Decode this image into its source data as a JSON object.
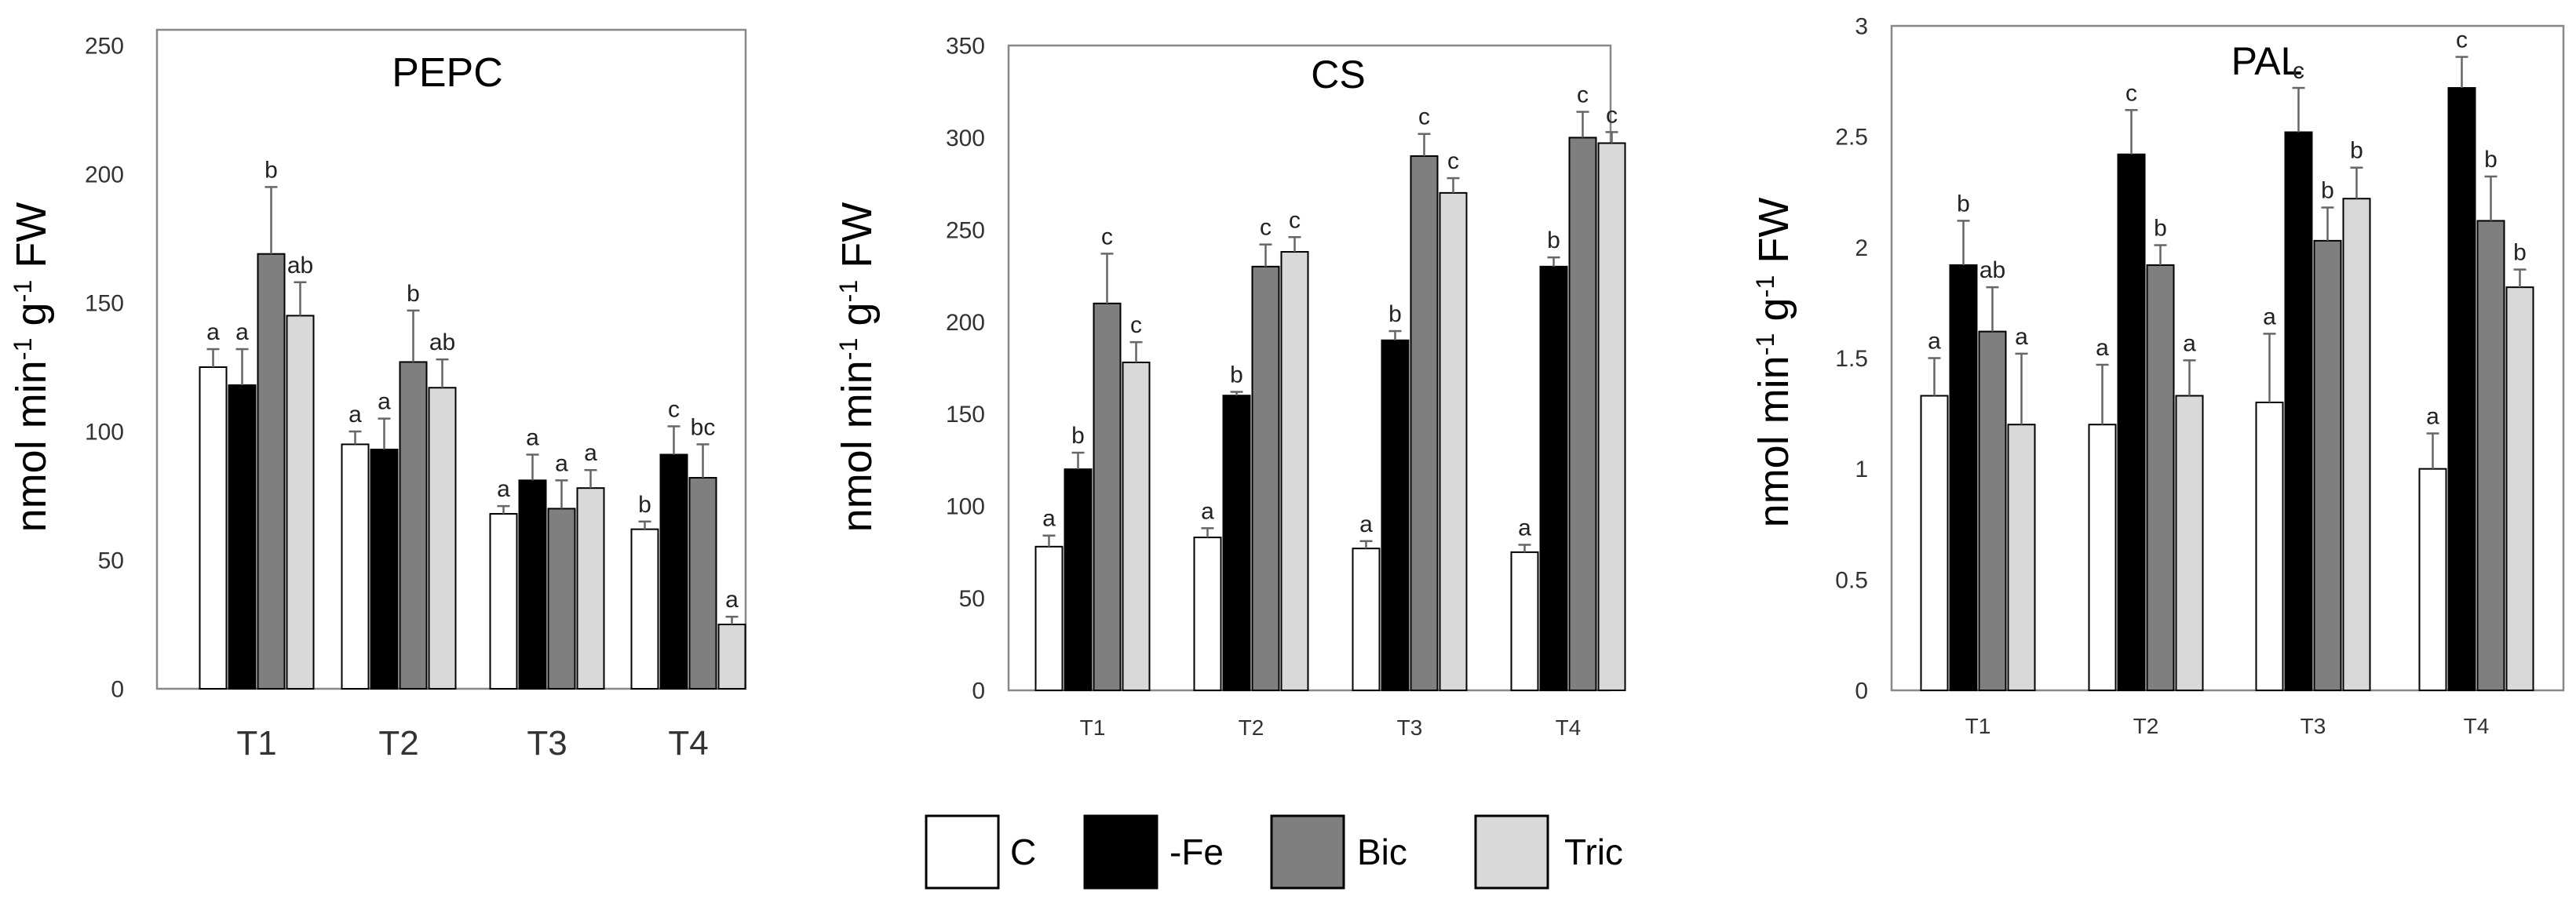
{
  "colors": {
    "C": "#ffffff",
    "-Fe": "#000000",
    "Bic": "#7f7f7f",
    "Tric": "#d9d9d9",
    "outline": "#000000",
    "error_bar": "#666666",
    "axis": "#888888"
  },
  "legend": [
    {
      "name": "C",
      "color": "#ffffff"
    },
    {
      "name": "-Fe",
      "color": "#000000"
    },
    {
      "name": "Bic",
      "color": "#7f7f7f"
    },
    {
      "name": "Tric",
      "color": "#d9d9d9"
    }
  ],
  "chart_data": [
    {
      "type": "bar",
      "title": "PEPC",
      "ylabel_parts": [
        "nmol min",
        "-1",
        " g",
        "-1",
        " FW"
      ],
      "categories": [
        "T1",
        "T2",
        "T3",
        "T4"
      ],
      "ylim": [
        0,
        250
      ],
      "yticks": [
        0,
        50,
        100,
        150,
        200,
        250
      ],
      "series": [
        {
          "name": "C",
          "values": [
            125,
            95,
            68,
            62
          ],
          "errors": [
            7,
            5,
            3,
            3
          ],
          "letters": [
            "a",
            "a",
            "a",
            "b"
          ]
        },
        {
          "name": "-Fe",
          "values": [
            118,
            93,
            81,
            91
          ],
          "errors": [
            14,
            12,
            10,
            11
          ],
          "letters": [
            "a",
            "a",
            "a",
            "c"
          ]
        },
        {
          "name": "Bic",
          "values": [
            169,
            127,
            70,
            82
          ],
          "errors": [
            26,
            20,
            11,
            13
          ],
          "letters": [
            "b",
            "b",
            "a",
            "bc"
          ]
        },
        {
          "name": "Tric",
          "values": [
            145,
            117,
            78,
            25
          ],
          "errors": [
            13,
            11,
            7,
            3
          ],
          "letters": [
            "ab",
            "ab",
            "a",
            "a"
          ]
        }
      ]
    },
    {
      "type": "bar",
      "title": "CS",
      "ylabel_parts": [
        "nmol min",
        "-1",
        " g",
        "-1",
        " FW"
      ],
      "categories": [
        "T1",
        "T2",
        "T3",
        "T4"
      ],
      "ylim": [
        0,
        350
      ],
      "yticks": [
        0,
        50,
        100,
        150,
        200,
        250,
        300,
        350
      ],
      "series": [
        {
          "name": "C",
          "values": [
            78,
            83,
            77,
            75
          ],
          "errors": [
            6,
            5,
            4,
            4
          ],
          "letters": [
            "a",
            "a",
            "a",
            "a"
          ]
        },
        {
          "name": "-Fe",
          "values": [
            120,
            160,
            190,
            230
          ],
          "errors": [
            9,
            2,
            5,
            5
          ],
          "letters": [
            "b",
            "b",
            "b",
            "b"
          ]
        },
        {
          "name": "Bic",
          "values": [
            210,
            230,
            290,
            300
          ],
          "errors": [
            27,
            12,
            12,
            14
          ],
          "letters": [
            "c",
            "c",
            "c",
            "c"
          ]
        },
        {
          "name": "Tric",
          "values": [
            178,
            238,
            270,
            297
          ],
          "errors": [
            11,
            8,
            8,
            6
          ],
          "letters": [
            "c",
            "c",
            "c",
            "c"
          ]
        }
      ]
    },
    {
      "type": "bar",
      "title": "PAL",
      "ylabel_parts": [
        "nmol min",
        "-1",
        " g",
        "-1",
        " FW"
      ],
      "categories": [
        "T1",
        "T2",
        "T3",
        "T4"
      ],
      "ylim": [
        0,
        3
      ],
      "yticks": [
        0,
        0.5,
        1,
        1.5,
        2,
        2.5,
        3
      ],
      "series": [
        {
          "name": "C",
          "values": [
            1.33,
            1.2,
            1.3,
            1.0
          ],
          "errors": [
            0.17,
            0.27,
            0.31,
            0.16
          ],
          "letters": [
            "a",
            "a",
            "a",
            "a"
          ]
        },
        {
          "name": "-Fe",
          "values": [
            1.92,
            2.42,
            2.52,
            2.72
          ],
          "errors": [
            0.2,
            0.2,
            0.2,
            0.14
          ],
          "letters": [
            "b",
            "c",
            "c",
            "c"
          ]
        },
        {
          "name": "Bic",
          "values": [
            1.62,
            1.92,
            2.03,
            2.12
          ],
          "errors": [
            0.2,
            0.09,
            0.15,
            0.2
          ],
          "letters": [
            "ab",
            "b",
            "b",
            "b"
          ]
        },
        {
          "name": "Tric",
          "values": [
            1.2,
            1.33,
            2.22,
            1.82
          ],
          "errors": [
            0.32,
            0.16,
            0.14,
            0.08
          ],
          "letters": [
            "a",
            "a",
            "b",
            "b"
          ]
        }
      ]
    }
  ]
}
